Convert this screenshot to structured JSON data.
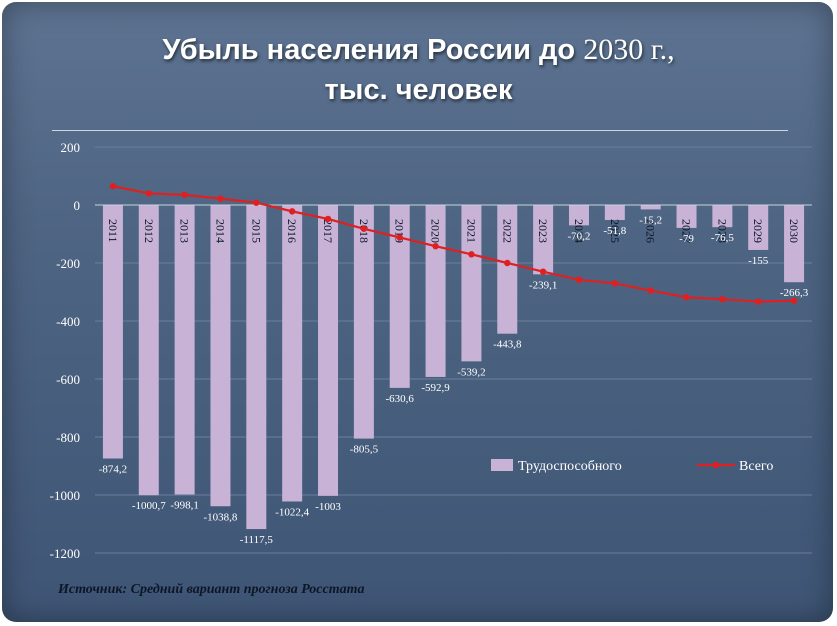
{
  "title": {
    "line1_text": "Убыль  населения  России   до ",
    "line1_year": "2030",
    "line1_end": " г.,",
    "line2": "тыс. человек"
  },
  "source": "Источник: Средний вариант прогноза Росстата",
  "colors": {
    "bar": "#c8b3d6",
    "line": "#e02020",
    "grid": "#6a7f9b"
  },
  "chart_data": {
    "type": "bar",
    "title": "Убыль населения России до 2030 г., тыс. человек",
    "xlabel": "",
    "ylabel": "",
    "ylim": [
      -1200,
      200
    ],
    "yticks": [
      200,
      0,
      -200,
      -400,
      -600,
      -800,
      -1000,
      -1200
    ],
    "categories": [
      "2011",
      "2012",
      "2013",
      "2014",
      "2015",
      "2016",
      "2017",
      "2018",
      "2019",
      "2020",
      "2021",
      "2022",
      "2023",
      "2024",
      "2025",
      "2026",
      "2027",
      "2028",
      "2029",
      "2030"
    ],
    "series": [
      {
        "name": "Трудоспособного",
        "type": "bar",
        "values": [
          -874.2,
          -1000.7,
          -998.1,
          -1038.8,
          -1117.5,
          -1022.4,
          -1003,
          -805.5,
          -630.6,
          -592.9,
          -539.2,
          -443.8,
          -239.1,
          -70.2,
          -51.8,
          -15.2,
          -79,
          -76.5,
          -155,
          -266.3
        ],
        "labels": [
          "-874,2",
          "-1000,7",
          "-998,1",
          "-1038,8",
          "-1117,5",
          "-1022,4",
          "-1003",
          "-805,5",
          "-630,6",
          "-592,9",
          "-539,2",
          "-443,8",
          "-239,1",
          "-70,2",
          "-51,8",
          "-15,2",
          "-79",
          "-76,5",
          "-155",
          "-266,3"
        ]
      },
      {
        "name": "Всего",
        "type": "line",
        "values": [
          65,
          40,
          35,
          22,
          8,
          -22,
          -48,
          -82,
          -112,
          -142,
          -170,
          -200,
          -230,
          -258,
          -270,
          -295,
          -318,
          -325,
          -333,
          -330
        ]
      }
    ],
    "legend": "inside-bottom-right"
  }
}
